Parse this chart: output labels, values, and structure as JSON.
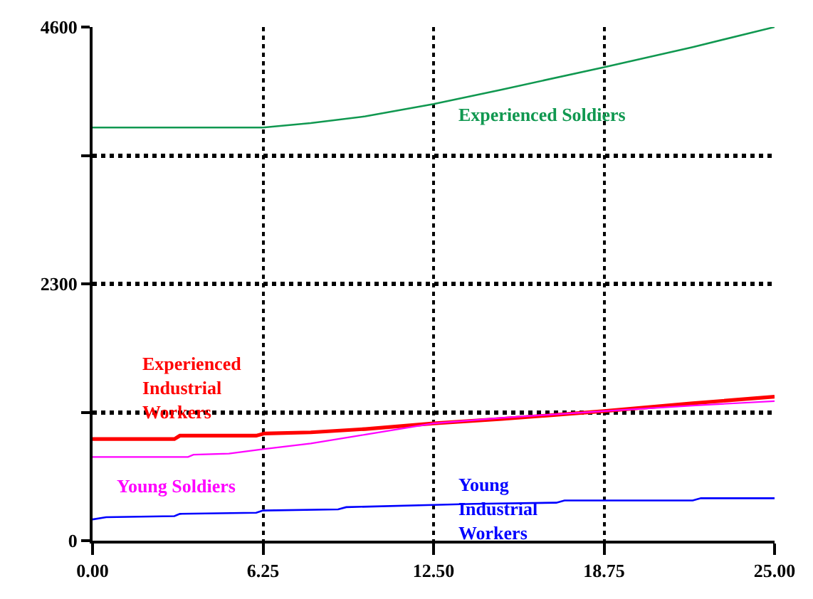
{
  "chart_data": {
    "type": "line",
    "xlim": [
      0,
      25
    ],
    "ylim": [
      0,
      4600
    ],
    "xticks": [
      {
        "value": 0,
        "label": "0.00"
      },
      {
        "value": 6.25,
        "label": "6.25"
      },
      {
        "value": 12.5,
        "label": "12.50"
      },
      {
        "value": 18.75,
        "label": "18.75"
      },
      {
        "value": 25,
        "label": "25.00"
      }
    ],
    "yticks": [
      0,
      {
        "value": 1150,
        "label": null
      },
      2300,
      {
        "value": 3450,
        "label": null
      },
      4600
    ],
    "grid": true,
    "line_style": "solid",
    "marker": "none",
    "legend": false,
    "series": [
      {
        "name": "Experienced Soldiers",
        "color": "#109850",
        "x": [
          0,
          6.25,
          8,
          10,
          12.5,
          15,
          18.75,
          22,
          25
        ],
        "values": [
          3700,
          3700,
          3740,
          3800,
          3910,
          4040,
          4240,
          4420,
          4600
        ]
      },
      {
        "name": "Experienced Industrial Workers",
        "color": "#ff0000",
        "x": [
          0,
          3,
          3.2,
          6,
          6.3,
          8,
          10,
          12.5,
          15,
          18.75,
          22,
          25
        ],
        "values": [
          910,
          910,
          940,
          940,
          960,
          970,
          1000,
          1050,
          1090,
          1160,
          1230,
          1290
        ]
      },
      {
        "name": "Young Soldiers",
        "color": "#ff00ff",
        "x": [
          0,
          3.5,
          3.7,
          5,
          6.25,
          8,
          10,
          12.5,
          15,
          18.75,
          22,
          25
        ],
        "values": [
          750,
          750,
          770,
          780,
          820,
          870,
          950,
          1050,
          1100,
          1160,
          1210,
          1250
        ]
      },
      {
        "name": "Young Industrial Workers",
        "color": "#0000ff",
        "x": [
          0,
          0.5,
          3,
          3.2,
          6,
          6.25,
          9,
          9.3,
          12.5,
          14,
          17,
          17.3,
          22,
          22.3,
          25
        ],
        "values": [
          190,
          210,
          220,
          240,
          250,
          270,
          280,
          300,
          320,
          330,
          340,
          360,
          360,
          380,
          380
        ]
      }
    ]
  }
}
